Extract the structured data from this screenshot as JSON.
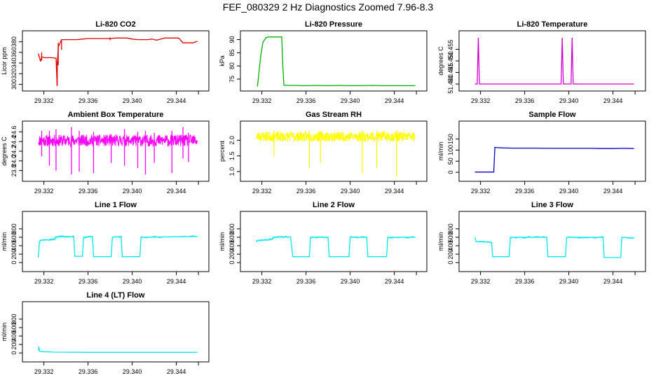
{
  "page": {
    "title": "FEF_080329  2 Hz Diagnostics Zoomed 7.96-8.3"
  },
  "shared_x": {
    "xlim": [
      29.3305,
      29.3465
    ],
    "ticks": [
      29.332,
      29.336,
      29.34,
      29.344
    ],
    "tick_labels": [
      "29.332",
      "29.336",
      "29.340",
      "29.344"
    ]
  },
  "chart_data": [
    {
      "id": "co2",
      "type": "line",
      "title": "Li-820 CO2",
      "ylabel": "Licor ppm",
      "color": "#e00000",
      "ylim": [
        294,
        394
      ],
      "yticks": [
        300,
        320,
        340,
        360,
        380
      ],
      "ytick_labels": [
        "300",
        "320",
        "340",
        "360",
        "380"
      ],
      "x": [
        29.3315,
        29.3317,
        29.3318,
        29.332,
        29.3327,
        29.3331,
        29.3332,
        29.33322,
        29.3333,
        29.3336,
        29.334,
        29.3345,
        29.335,
        29.3355,
        29.336,
        29.3365,
        29.337,
        29.3375,
        29.338,
        29.3385,
        29.339,
        29.3395,
        29.34,
        29.3405,
        29.341,
        29.3414,
        29.3418,
        29.3422,
        29.3426,
        29.343,
        29.3434,
        29.3438,
        29.3442,
        29.3446,
        29.345,
        29.3455,
        29.3459
      ],
      "values": [
        358,
        343,
        352,
        350,
        350,
        349,
        297,
        337,
        370,
        384,
        384,
        384,
        384,
        385,
        386,
        386,
        386,
        386,
        386,
        387,
        387,
        387,
        385,
        384,
        384,
        384,
        385,
        383,
        385,
        387,
        387,
        387,
        387,
        378,
        378,
        378,
        381
      ],
      "spikes": [
        {
          "x": 29.3318,
          "from": 345,
          "to": 360
        },
        {
          "x": 29.3332,
          "from": 297,
          "to": 343
        },
        {
          "x": 29.3333,
          "from": 336,
          "to": 378
        },
        {
          "x": 29.3336,
          "from": 365,
          "to": 385
        },
        {
          "x": 29.338,
          "from": 383,
          "to": 388
        }
      ]
    },
    {
      "id": "pressure",
      "type": "line",
      "title": "Li-820 Pressure",
      "ylabel": "kPa",
      "color": "#00b000",
      "ylim": [
        71.8,
        92
      ],
      "yticks": [
        75,
        80,
        85,
        90
      ],
      "ytick_labels": [
        "75",
        "80",
        "85",
        "90"
      ],
      "x": [
        29.3316,
        29.3317,
        29.3319,
        29.3321,
        29.3324,
        29.3326,
        29.333,
        29.3335,
        29.3338,
        29.3339,
        29.334,
        29.3345,
        29.335,
        29.336,
        29.337,
        29.338,
        29.339,
        29.34,
        29.341,
        29.342,
        29.343,
        29.344,
        29.345,
        29.3459
      ],
      "values": [
        72.2,
        76,
        84,
        89,
        90.8,
        91,
        91,
        91,
        91,
        80,
        72.7,
        72.6,
        72.6,
        72.5,
        72.6,
        72.5,
        72.6,
        72.5,
        72.5,
        72.6,
        72.5,
        72.5,
        72.5,
        72.5
      ]
    },
    {
      "id": "temperature",
      "type": "line",
      "title": "Li-820 Temperature",
      "ylabel": "degrees C",
      "color": "#d000d0",
      "ylim": [
        51.4385,
        51.4615
      ],
      "yticks": [
        51.44,
        51.445,
        51.45,
        51.455
      ],
      "ytick_labels": [
        "51.440",
        "51.445",
        "51.450",
        "51.455"
      ],
      "x": [
        29.3315,
        29.3317,
        29.3318,
        29.3319,
        29.332,
        29.3393,
        29.3394,
        29.3395,
        29.3396,
        29.3402,
        29.3403,
        29.3404,
        29.3405,
        29.3459
      ],
      "values": [
        51.44,
        51.44,
        51.46,
        51.44,
        51.44,
        51.44,
        51.46,
        51.44,
        51.44,
        51.44,
        51.46,
        51.44,
        51.44,
        51.44
      ]
    },
    {
      "id": "box_temp",
      "type": "line",
      "title": "Ambient Box Temperature",
      "ylabel": "degrees C",
      "color": "#ff00ff",
      "ylim": [
        23.65,
        24.75
      ],
      "yticks": [
        23.8,
        24.0,
        24.2,
        24.4,
        24.6
      ],
      "ytick_labels": [
        "23.8",
        "24.0",
        "24.2",
        "24.4",
        "24.6"
      ],
      "base": 24.42,
      "noise": 0.12,
      "seed": 11,
      "spikes": [
        {
          "x": 29.3318,
          "from": 24.1,
          "to": 24.62
        },
        {
          "x": 29.3325,
          "from": 23.9,
          "to": 24.62
        },
        {
          "x": 29.3331,
          "from": 23.8,
          "to": 24.65
        },
        {
          "x": 29.3345,
          "from": 23.72,
          "to": 24.7
        },
        {
          "x": 29.3352,
          "from": 23.78,
          "to": 24.62
        },
        {
          "x": 29.3365,
          "from": 23.75,
          "to": 24.6
        },
        {
          "x": 29.3381,
          "from": 23.96,
          "to": 24.55
        },
        {
          "x": 29.3393,
          "from": 23.9,
          "to": 24.66
        },
        {
          "x": 29.3405,
          "from": 23.85,
          "to": 24.6
        },
        {
          "x": 29.3412,
          "from": 23.72,
          "to": 24.62
        },
        {
          "x": 29.342,
          "from": 23.96,
          "to": 24.58
        },
        {
          "x": 29.3436,
          "from": 23.75,
          "to": 24.62
        },
        {
          "x": 29.3446,
          "from": 24.05,
          "to": 24.7
        },
        {
          "x": 29.3451,
          "from": 23.98,
          "to": 24.58
        }
      ]
    },
    {
      "id": "rh",
      "type": "line",
      "title": "Gas Stream RH",
      "ylabel": "percent",
      "color": "#ffff00",
      "ylim": [
        0.8,
        2.5
      ],
      "yticks": [
        1.0,
        1.5,
        2.0
      ],
      "ytick_labels": [
        "1.0",
        "1.5",
        "2.0"
      ],
      "base": 2.12,
      "noise": 0.16,
      "seed": 23,
      "spikes": [
        {
          "x": 29.3331,
          "from": 1.48,
          "to": 2.3
        },
        {
          "x": 29.3363,
          "from": 1.12,
          "to": 2.3
        },
        {
          "x": 29.3373,
          "from": 1.28,
          "to": 2.3
        },
        {
          "x": 29.3411,
          "from": 0.93,
          "to": 2.3
        },
        {
          "x": 29.3424,
          "from": 1.12,
          "to": 2.3
        },
        {
          "x": 29.3442,
          "from": 0.83,
          "to": 2.3
        }
      ]
    },
    {
      "id": "sample_flow",
      "type": "line",
      "title": "Sample Flow",
      "ylabel": "ml/min",
      "color": "#0000c0",
      "ylim": [
        -25,
        215
      ],
      "yticks": [
        0,
        50,
        100,
        150
      ],
      "ytick_labels": [
        "0",
        "50",
        "100",
        "150"
      ],
      "x": [
        29.3315,
        29.332,
        29.3325,
        29.333,
        29.3332,
        29.3333,
        29.3335,
        29.334,
        29.335,
        29.336,
        29.337,
        29.338,
        29.339,
        29.34,
        29.341,
        29.342,
        29.343,
        29.344,
        29.345,
        29.3459
      ],
      "values": [
        1,
        1,
        1,
        1,
        1,
        112,
        111,
        110,
        109,
        109,
        109,
        108,
        108,
        108,
        108,
        108,
        107,
        107,
        108,
        107
      ]
    },
    {
      "id": "line1",
      "type": "line",
      "title": "Line 1 Flow",
      "ylabel": "ml/min",
      "color": "#00e8f0",
      "ylim": [
        -130,
        1130
      ],
      "yticks": [
        0,
        200,
        400,
        600,
        800
      ],
      "ytick_labels": [
        "0",
        "200",
        "400",
        "600",
        "800"
      ],
      "x": [
        29.3315,
        29.3316,
        29.3317,
        29.3325,
        29.333,
        29.33305,
        29.3336,
        29.3347,
        29.3348,
        29.3355,
        29.3356,
        29.3364,
        29.3365,
        29.3381,
        29.3382,
        29.339,
        29.3391,
        29.3407,
        29.3408,
        29.3459
      ],
      "values": [
        120,
        490,
        530,
        540,
        560,
        600,
        620,
        615,
        150,
        150,
        600,
        620,
        140,
        140,
        600,
        620,
        140,
        140,
        600,
        620
      ]
    },
    {
      "id": "line2",
      "type": "line",
      "title": "Line 2 Flow",
      "ylabel": "ml/min",
      "color": "#00e8f0",
      "ylim": [
        -130,
        1130
      ],
      "yticks": [
        0,
        200,
        400,
        600,
        800
      ],
      "ytick_labels": [
        "0",
        "200",
        "400",
        "600",
        "800"
      ],
      "x": [
        29.3315,
        29.3316,
        29.3325,
        29.333,
        29.33305,
        29.3346,
        29.3348,
        29.3363,
        29.3364,
        29.338,
        29.3381,
        29.3399,
        29.34,
        29.3415,
        29.3416,
        29.3433,
        29.3434,
        29.3459
      ],
      "values": [
        500,
        520,
        540,
        560,
        600,
        610,
        140,
        140,
        600,
        600,
        140,
        140,
        600,
        600,
        140,
        140,
        600,
        600
      ]
    },
    {
      "id": "line3",
      "type": "line",
      "title": "Line 3 Flow",
      "ylabel": "ml/min",
      "color": "#00e8f0",
      "ylim": [
        -130,
        1130
      ],
      "yticks": [
        0,
        200,
        400,
        600,
        800
      ],
      "ytick_labels": [
        "0",
        "200",
        "400",
        "600",
        "800"
      ],
      "x": [
        29.3315,
        29.3316,
        29.333,
        29.3331,
        29.3346,
        29.3347,
        29.338,
        29.3381,
        29.3397,
        29.3398,
        29.3431,
        29.3432,
        29.3447,
        29.3448,
        29.3459
      ],
      "values": [
        600,
        500,
        480,
        140,
        140,
        600,
        600,
        140,
        140,
        600,
        600,
        120,
        120,
        600,
        580
      ]
    },
    {
      "id": "line4",
      "type": "line",
      "title": "Line 4 (LT) Flow",
      "ylabel": "ml/min",
      "color": "#00e8f0",
      "ylim": [
        -130,
        1130
      ],
      "yticks": [
        0,
        200,
        400,
        600,
        800
      ],
      "ytick_labels": [
        "0",
        "200",
        "400",
        "600",
        "800"
      ],
      "x": [
        29.3315,
        29.33155,
        29.3316,
        29.3318,
        29.333,
        29.336,
        29.34,
        29.343,
        29.3459
      ],
      "values": [
        60,
        150,
        40,
        30,
        20,
        15,
        15,
        15,
        15
      ]
    }
  ]
}
